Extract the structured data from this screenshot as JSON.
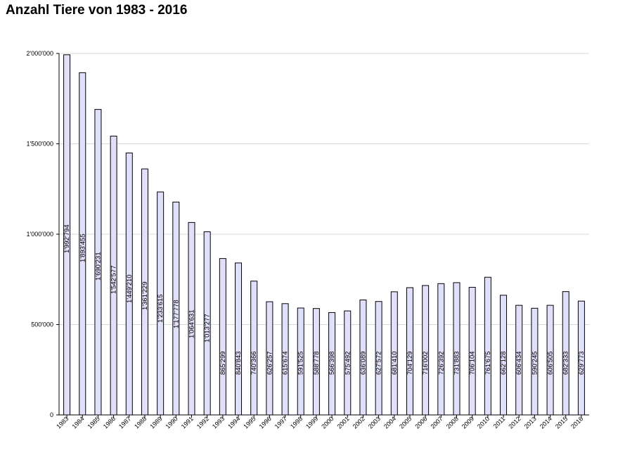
{
  "chart_data": {
    "type": "bar",
    "title": "Anzahl Tiere von 1983 - 2016",
    "xlabel": "",
    "ylabel": "",
    "ylim": [
      0,
      2000000
    ],
    "yticks": [
      0,
      500000,
      1000000,
      1500000,
      2000000
    ],
    "ytick_labels": [
      "0",
      "500'000",
      "1'000'000",
      "1'500'000",
      "2'000'000"
    ],
    "grid": true,
    "colors": {
      "bar_fill": "#e0e0fa",
      "bar_stroke": "#000000",
      "grid": "#d9d9d9",
      "axis": "#000000"
    },
    "categories": [
      "1983",
      "1984",
      "1985",
      "1986",
      "1987",
      "1988",
      "1989",
      "1990",
      "1991",
      "1992",
      "1993",
      "1994",
      "1995",
      "1996",
      "1997",
      "1998",
      "1999",
      "2000",
      "2001",
      "2002",
      "2003",
      "2004",
      "2005",
      "2006",
      "2007",
      "2008",
      "2009",
      "2010",
      "2011",
      "2012",
      "2013",
      "2014",
      "2015",
      "2016"
    ],
    "values": [
      1992794,
      1893455,
      1690231,
      1542577,
      1449210,
      1361229,
      1233615,
      1177778,
      1064631,
      1013277,
      865299,
      840843,
      740366,
      626257,
      615674,
      591525,
      588778,
      566398,
      575492,
      636089,
      627572,
      681410,
      704129,
      716002,
      726392,
      731883,
      706104,
      761675,
      662128,
      606434,
      590245,
      606505,
      682333,
      629773
    ],
    "data_labels": [
      "1'992'794",
      "1'893'455",
      "1'690'231",
      "1'542'577",
      "1'449'210",
      "1'361'229",
      "1'233'615",
      "1'177'778",
      "1'064'631",
      "1'013'277",
      "865'299",
      "840'843",
      "740'366",
      "626'257",
      "615'674",
      "591'525",
      "588'778",
      "566'398",
      "575'492",
      "636'089",
      "627'572",
      "681'410",
      "704'129",
      "716'002",
      "726'392",
      "731'883",
      "706'104",
      "761'675",
      "662'128",
      "606'434",
      "590'245",
      "606'505",
      "682'333",
      "629'773"
    ]
  }
}
